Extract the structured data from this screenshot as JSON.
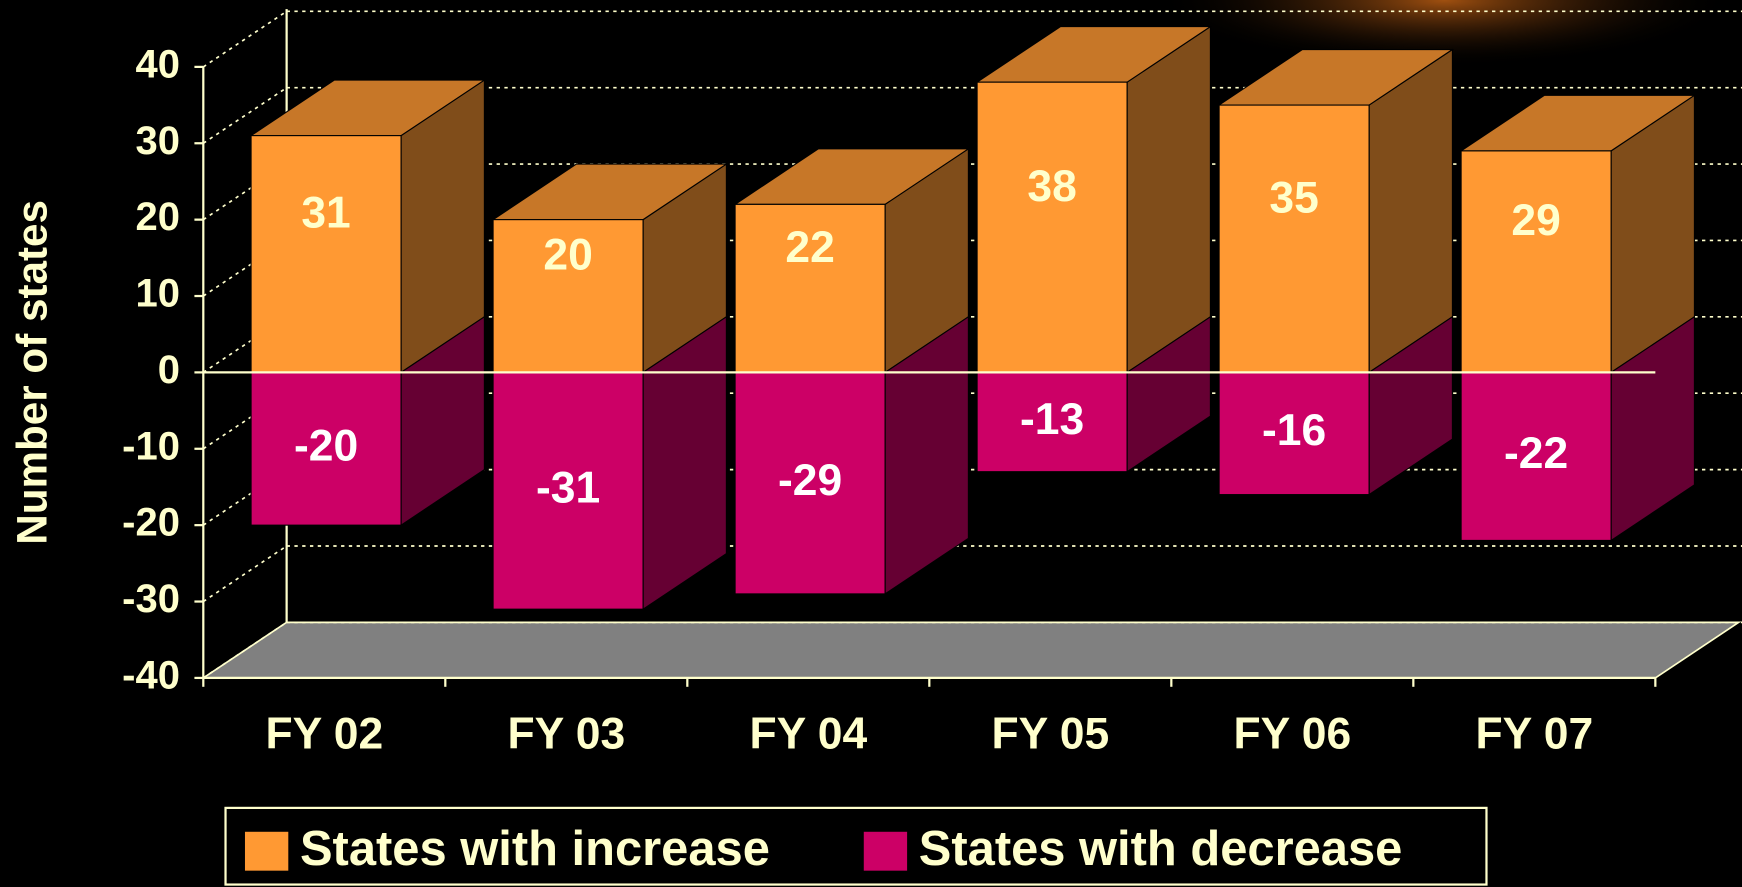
{
  "chart_data": {
    "type": "bar3d",
    "y_label": "Number of states",
    "categories": [
      "FY 02",
      "FY 03",
      "FY 04",
      "FY 05",
      "FY 06",
      "FY 07"
    ],
    "series": [
      {
        "name": "States with increase",
        "color": "#ff9933",
        "values": [
          31,
          20,
          22,
          38,
          35,
          29
        ]
      },
      {
        "name": "States with decrease",
        "color": "#cc0066",
        "values": [
          -20,
          -31,
          -29,
          -13,
          -16,
          -22
        ]
      }
    ],
    "ylim": [
      -40,
      40
    ],
    "yticks": [
      -40,
      -30,
      -20,
      -10,
      0,
      10,
      20,
      30,
      40
    ],
    "grid": true,
    "legend": "bottom"
  }
}
